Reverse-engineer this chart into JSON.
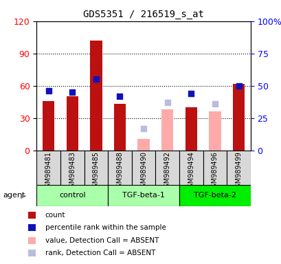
{
  "title": "GDS5351 / 216519_s_at",
  "samples": [
    "GSM989481",
    "GSM989483",
    "GSM989485",
    "GSM989488",
    "GSM989490",
    "GSM989492",
    "GSM989494",
    "GSM989496",
    "GSM989499"
  ],
  "count_present": [
    46,
    50,
    102,
    43,
    null,
    null,
    40,
    null,
    62
  ],
  "count_absent": [
    null,
    null,
    null,
    null,
    11,
    38,
    null,
    36,
    null
  ],
  "rank_present": [
    46,
    45,
    55,
    42,
    null,
    null,
    44,
    null,
    50
  ],
  "rank_absent": [
    null,
    null,
    null,
    null,
    17,
    37,
    null,
    36,
    null
  ],
  "left_ylim": [
    0,
    120
  ],
  "right_ylim": [
    0,
    100
  ],
  "left_yticks": [
    0,
    30,
    60,
    90,
    120
  ],
  "right_yticks": [
    0,
    25,
    50,
    75,
    100
  ],
  "left_yticklabels": [
    "0",
    "30",
    "60",
    "90",
    "120"
  ],
  "right_yticklabels": [
    "0",
    "25",
    "50",
    "75",
    "100%"
  ],
  "count_color": "#bb1111",
  "rank_present_color": "#1111bb",
  "count_absent_color": "#ffaaaa",
  "rank_absent_color": "#bbbbdd",
  "groups": [
    {
      "name": "control",
      "start": 0,
      "end": 2,
      "light": "#aaffaa"
    },
    {
      "name": "TGF-beta-1",
      "start": 3,
      "end": 5,
      "light": "#aaffaa"
    },
    {
      "name": "TGF-beta-2",
      "start": 6,
      "end": 8,
      "light": "#00ee00"
    }
  ],
  "legend_items": [
    {
      "color": "#bb1111",
      "label": "count"
    },
    {
      "color": "#1111bb",
      "label": "percentile rank within the sample"
    },
    {
      "color": "#ffaaaa",
      "label": "value, Detection Call = ABSENT"
    },
    {
      "color": "#bbbbdd",
      "label": "rank, Detection Call = ABSENT"
    }
  ]
}
